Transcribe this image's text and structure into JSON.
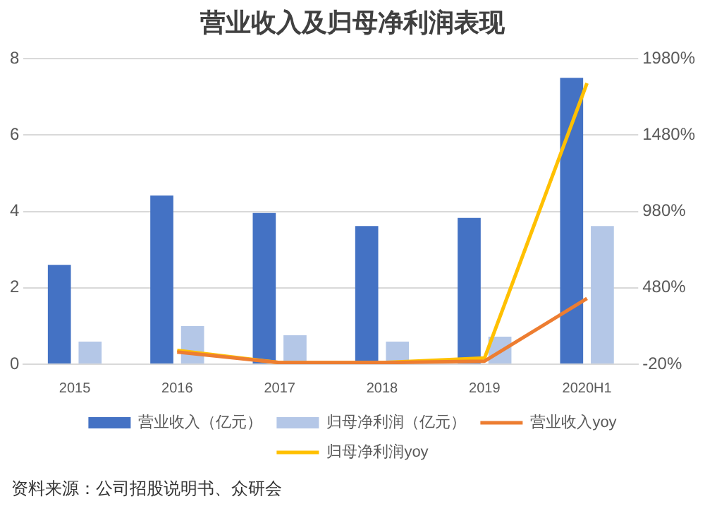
{
  "chart_data": {
    "type": "bar",
    "title": "营业收入及归母净利润表现",
    "categories": [
      "2015",
      "2016",
      "2017",
      "2018",
      "2019",
      "2020H1"
    ],
    "series": [
      {
        "name": "营业收入（亿元）",
        "color": "#4472c4",
        "values": [
          2.6,
          4.42,
          3.96,
          3.62,
          3.83,
          7.5
        ]
      },
      {
        "name": "归母净利润（亿元）",
        "color": "#b4c7e7",
        "values": [
          0.59,
          1.0,
          0.76,
          0.59,
          0.72,
          3.62
        ]
      },
      {
        "name": "营业收入yoy",
        "type": "line",
        "axis": "y2",
        "color": "#ed7d31",
        "values": [
          null,
          60,
          -10,
          -10,
          0,
          410
        ]
      },
      {
        "name": "归母净利润yoy",
        "type": "line",
        "axis": "y2",
        "color": "#ffc000",
        "values": [
          null,
          70,
          -10,
          -10,
          20,
          1820
        ]
      }
    ],
    "ylim": [
      0,
      8
    ],
    "yticks": [
      0,
      2,
      4,
      6,
      8
    ],
    "y2lim": [
      -20,
      1980
    ],
    "y2ticks": [
      {
        "value": -20,
        "label": "-20%"
      },
      {
        "value": 480,
        "label": "480%"
      },
      {
        "value": 980,
        "label": "980%"
      },
      {
        "value": 1480,
        "label": "1480%"
      },
      {
        "value": 1980,
        "label": "1980%"
      }
    ],
    "grid": "y",
    "legend": "bottom",
    "marker": "none",
    "line_style": "solid",
    "annotations": [
      "资料来源：公司招股说明书、众研会"
    ]
  }
}
